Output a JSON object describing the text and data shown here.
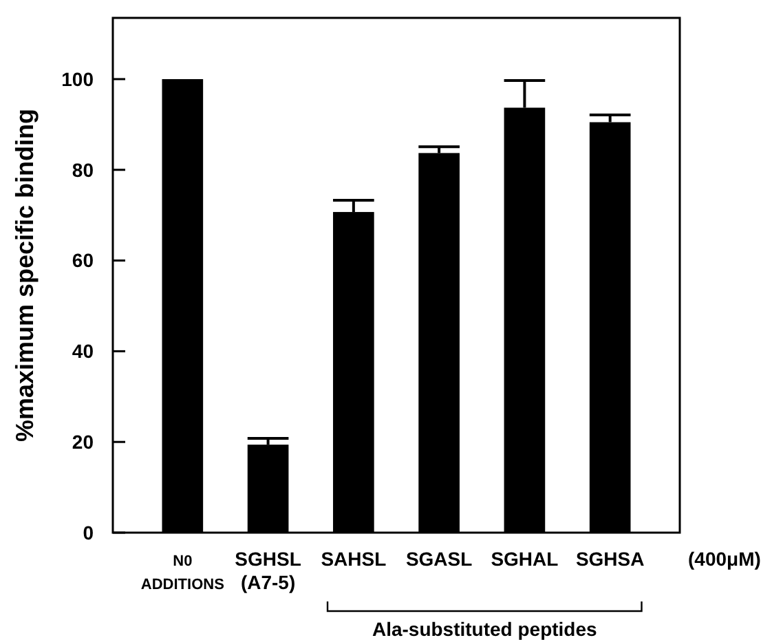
{
  "chart_data": {
    "type": "bar",
    "ylabel": "%maximum specific binding",
    "categories": [
      "N0\nADDITIONS",
      "SGHSL\n(A7-5)",
      "SAHSL",
      "SGASL",
      "SGHAL",
      "SGHSA"
    ],
    "values": [
      100,
      19.4,
      70.7,
      83.7,
      93.7,
      90.5
    ],
    "errors": [
      null,
      [
        19.4,
        20.8
      ],
      [
        70.7,
        73.3
      ],
      [
        83.7,
        85.1
      ],
      [
        93.7,
        99.7
      ],
      [
        90.5,
        92.1
      ]
    ],
    "color": "#000000",
    "ylim": [
      0,
      113.5
    ],
    "yticks": [
      0,
      20,
      40,
      60,
      80,
      100
    ],
    "grid": false,
    "annotations": [
      "(400μM)",
      "Ala-substituted peptides"
    ]
  }
}
